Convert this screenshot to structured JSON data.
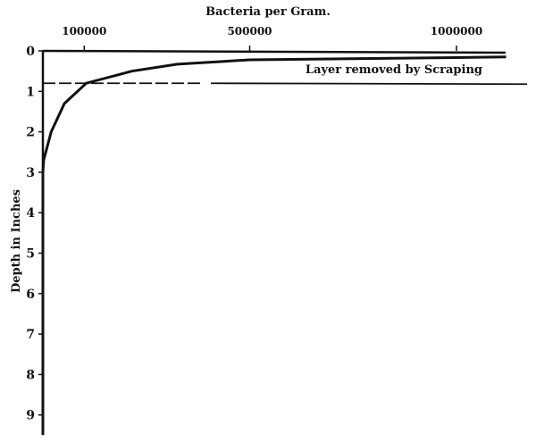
{
  "chart_data": {
    "type": "line",
    "title": "Bacteria per Gram.",
    "xlabel": "Bacteria per Gram.",
    "ylabel": "Depth in Inches",
    "x_axis_position": "top",
    "x_ticks": [
      {
        "value": 100000,
        "label": "100000"
      },
      {
        "value": 500000,
        "label": "500000"
      },
      {
        "value": 1000000,
        "label": "1000000"
      }
    ],
    "y_ticks": [
      "0",
      "1",
      "2",
      "3",
      "4",
      "5",
      "6",
      "7",
      "8",
      "9"
    ],
    "xlim": [
      0,
      1120000
    ],
    "ylim": [
      0,
      9.5
    ],
    "y_inverted": true,
    "grid": false,
    "series": [
      {
        "x": [
          1120000,
          500000,
          325000,
          215000,
          105000,
          52000,
          20000,
          2000,
          0,
          0
        ],
        "y": [
          0.15,
          0.22,
          0.33,
          0.5,
          0.8,
          1.3,
          2.0,
          2.7,
          3.0,
          9.5
        ]
      }
    ],
    "annotations": [
      {
        "text": "Layer removed by Scraping",
        "depth": 0.8
      }
    ]
  }
}
